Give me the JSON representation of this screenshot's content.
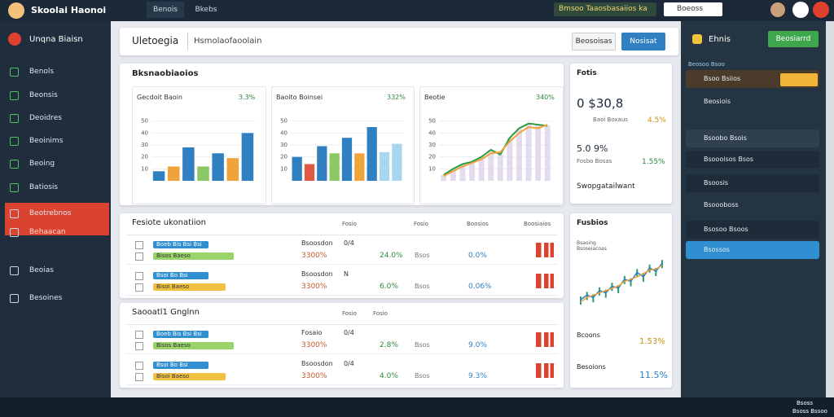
{
  "topbar": {
    "brand": "Skoolai Haonoi",
    "tabs": [
      "Benois",
      "Bkebs"
    ],
    "notice": "Bmsoo Taaosbasaiios ka",
    "search": "Boeoss"
  },
  "sidebar": {
    "title": "Unqna Biaisn",
    "items": [
      "Benols",
      "Beonsis",
      "Deoidres",
      "Beoinims",
      "Beoing",
      "Batiosis",
      "Beotrebnos",
      "Behaacan",
      "Beoias",
      "Besoines"
    ]
  },
  "header": {
    "title": "Uletoegia",
    "subtitle": "Hsmolaofaoolain",
    "buttons": [
      "Beosoisas",
      "Nosisat"
    ]
  },
  "overview": {
    "title": "Bksnaobiaoios",
    "charts": [
      {
        "title": "Gecdoit Baoin",
        "value": "3.3%",
        "ylim": [
          0,
          60
        ],
        "yticks": [
          10,
          20,
          30,
          40,
          50
        ],
        "values": [
          8,
          12,
          28,
          12,
          23,
          19,
          40
        ],
        "colors": [
          "#2f7fc1",
          "#f0a33a",
          "#2f7fc1",
          "#8cc765",
          "#2f7fc1",
          "#f0a33a",
          "#2f7fc1"
        ]
      },
      {
        "title": "Baoito Boinsei",
        "value": "332%",
        "ylim": [
          0,
          60
        ],
        "yticks": [
          10,
          20,
          30,
          40,
          50
        ],
        "values": [
          20,
          14,
          29,
          23,
          36,
          23,
          45,
          24,
          31
        ],
        "colors": [
          "#2f7fc1",
          "#e05a43",
          "#2f7fc1",
          "#8cc765",
          "#2f7fc1",
          "#f0a33a",
          "#2f7fc1",
          "#a9d6ef",
          "#a9d6ef"
        ]
      },
      {
        "title": "Beotie",
        "value": "340%",
        "ylim": [
          0,
          60
        ],
        "yticks": [
          10,
          20,
          30,
          40,
          50
        ],
        "values": [
          5,
          10,
          14,
          16,
          20,
          26,
          22,
          36,
          44,
          48,
          47,
          46
        ],
        "values2": [
          4,
          8,
          12,
          15,
          18,
          23,
          24,
          33,
          40,
          45,
          44,
          47
        ]
      }
    ]
  },
  "stats": {
    "title": "Fotis",
    "value1": "0 $30,8",
    "sub1": "Baoi Boxaus",
    "pct1": "4.5%",
    "value2": "5.0 9%",
    "sub2": "Fosbo Bosas",
    "pct2": "1.55%",
    "footer": "Swopgatailwant"
  },
  "tables": [
    {
      "title": "Fesiote ukonatiion",
      "columns": [
        "Fosio",
        "Fosio",
        "Boosios",
        "Boosiaios"
      ],
      "rows": [
        {
          "tag1": "Boeb Bis Bsi Bsi",
          "tag2": "Bisos Baeso",
          "name": "Bsoosdon",
          "mid": "0/4",
          "amount": "3300%",
          "v1": "24.0%",
          "v2": "Bsos",
          "v3": "0.0%"
        },
        {
          "tag1": "Bsoi Bo Bsi",
          "tag2": "Bisoi Baeso",
          "name": "Bsoosdon",
          "mid": "N",
          "amount": "3300%",
          "v1": "6.0%",
          "v2": "Bsos",
          "v3": "0.06%"
        }
      ]
    },
    {
      "title": "Saooatl1 Gnglnn",
      "columns": [
        "Fosio",
        "Fosio"
      ],
      "rows": [
        {
          "tag1": "Boeb Bis Bsi Bsi",
          "tag2": "Bisos Baeso",
          "name": "Fosaio",
          "mid": "0/4",
          "amount": "3300%",
          "v1": "2.8%",
          "v2": "Bsos",
          "v3": "9.0%"
        },
        {
          "tag1": "Bsoi Bo Bsi",
          "tag2": "Bisoi Baeso",
          "name": "Bsoosdon",
          "mid": "0/4",
          "amount": "3300%",
          "v1": "4.0%",
          "v2": "Bsos",
          "v3": "9.3%"
        }
      ]
    }
  ],
  "trend": {
    "title": "Fusbios",
    "label": "Bsaoing Bsoseiacoas",
    "values": [
      10,
      14,
      12,
      18,
      16,
      22,
      20,
      28,
      26,
      34,
      30,
      38,
      35,
      42
    ],
    "values2": [
      8,
      12,
      14,
      16,
      18,
      20,
      22,
      26,
      28,
      30,
      33,
      36,
      37,
      40
    ],
    "items": [
      {
        "name": "Bcoons",
        "value": "1.53%"
      },
      {
        "name": "Besoions",
        "value": "11.5%"
      }
    ]
  },
  "rightbar": {
    "title": "Ehnis",
    "button": "Beosiarrd",
    "section": "Beosoo Bsoo",
    "items": [
      "Bsoo Bsiios",
      "Beosiois",
      "Bsoobo Bsois",
      "Bsoooisos Bsos",
      "Bsoosis",
      "Bsoooboss",
      "Bsosoo Bsoos",
      "Bsossos"
    ]
  },
  "taskbar": {
    "time": "Bsoss",
    "date": "Bsoss Bssoo"
  }
}
